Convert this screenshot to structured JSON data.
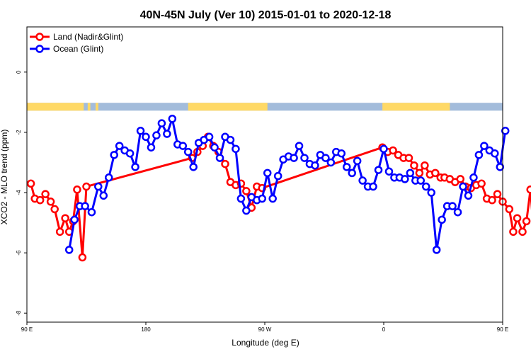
{
  "chart_data": {
    "type": "line",
    "title": "40N-45N July (Ver 10)   2015-01-01 to 2020-12-18",
    "xlabel": "Longitude (deg E)",
    "ylabel": "XCO2 - MLO trend (ppm)",
    "xlim": [
      90,
      450
    ],
    "ylim": [
      -8.3,
      1.5
    ],
    "x_ticks": [
      90,
      180,
      270,
      360,
      450,
      540
    ],
    "x_tick_labels": [
      "90 E",
      "180",
      "90 W",
      "0",
      "90 E",
      "180"
    ],
    "y_ticks": [
      0,
      -2,
      -4,
      -6,
      -8
    ],
    "y_tick_labels": [
      "0",
      "-2",
      "-4",
      "-6",
      "-8"
    ],
    "grid": false,
    "legend_position": "top-left",
    "land_ocean_strip": {
      "y_range": [
        -1.28,
        -1.02
      ],
      "land_color": "#FFD966",
      "ocean_color": "#A3BCDB",
      "land_segments": [
        [
          90,
          133
        ],
        [
          136,
          138
        ],
        [
          142,
          144
        ],
        [
          212,
          272
        ],
        [
          359,
          410
        ],
        [
          451,
          498
        ],
        [
          501,
          503
        ]
      ]
    },
    "series": [
      {
        "name": "Land (Nadir&Glint)",
        "color": "#FF0000",
        "x": [
          93,
          96,
          100,
          104,
          108,
          111,
          115,
          119,
          122,
          125,
          128,
          132,
          135,
          215,
          219,
          223,
          227,
          231,
          235,
          240,
          244,
          248,
          252,
          256,
          260,
          264,
          268,
          359,
          363,
          367,
          371,
          375,
          379,
          383,
          387,
          391,
          395,
          399,
          403,
          406,
          410,
          414,
          418,
          422,
          426,
          430,
          434,
          438,
          442,
          446,
          450,
          455,
          458,
          461,
          465,
          468,
          471,
          475,
          478,
          481,
          485
        ],
        "y": [
          -3.7,
          -4.2,
          -4.25,
          -4.05,
          -4.3,
          -4.55,
          -5.3,
          -4.85,
          -5.3,
          -4.95,
          -3.9,
          -6.15,
          -3.8,
          -2.85,
          -2.65,
          -2.45,
          -2.15,
          -2.45,
          -2.65,
          -3.05,
          -3.65,
          -3.75,
          -3.7,
          -3.95,
          -4.5,
          -3.8,
          -3.85,
          -2.5,
          -2.65,
          -2.6,
          -2.75,
          -2.85,
          -2.85,
          -3.1,
          -3.35,
          -3.1,
          -3.4,
          -3.35,
          -3.5,
          -3.5,
          -3.55,
          -3.65,
          -3.55,
          -3.8,
          -3.85,
          -3.75,
          -3.7,
          -4.2,
          -4.25,
          -4.05,
          -4.3,
          -4.55,
          -5.3,
          -4.85,
          -5.3,
          -4.95,
          -3.9,
          -6.15,
          -3.8,
          -2.85,
          -2.65
        ]
      },
      {
        "name": "Ocean (Glint)",
        "color": "#0000FF",
        "x": [
          122,
          126,
          130,
          134,
          139,
          144,
          148,
          152,
          156,
          160,
          164,
          168,
          172,
          176,
          180,
          184,
          188,
          192,
          196,
          200,
          204,
          208,
          212,
          216,
          220,
          224,
          228,
          232,
          236,
          240,
          244,
          248,
          252,
          256,
          260,
          264,
          268,
          272,
          276,
          280,
          284,
          288,
          292,
          296,
          300,
          304,
          308,
          312,
          316,
          320,
          324,
          328,
          332,
          336,
          340,
          344,
          348,
          352,
          356,
          360,
          364,
          368,
          372,
          376,
          380,
          384,
          388,
          392,
          396,
          400,
          404,
          408,
          412,
          416,
          420,
          424,
          428,
          432,
          436,
          440,
          444,
          448,
          452
        ],
        "y": [
          -5.9,
          -4.9,
          -4.45,
          -4.45,
          -4.65,
          -3.8,
          -4.1,
          -3.5,
          -2.75,
          -2.45,
          -2.6,
          -2.7,
          -3.15,
          -1.95,
          -2.15,
          -2.5,
          -2.1,
          -1.7,
          -2.05,
          -1.55,
          -2.4,
          -2.45,
          -2.65,
          -3.15,
          -2.35,
          -2.25,
          -2.15,
          -2.5,
          -2.85,
          -2.15,
          -2.25,
          -2.55,
          -4.2,
          -4.6,
          -4.15,
          -4.25,
          -4.2,
          -3.35,
          -4.2,
          -3.45,
          -2.9,
          -2.8,
          -2.85,
          -2.45,
          -2.85,
          -3.05,
          -3.1,
          -2.75,
          -2.85,
          -3.0,
          -2.65,
          -2.7,
          -3.15,
          -3.35,
          -2.95,
          -3.6,
          -3.8,
          -3.8,
          -3.25,
          -2.55,
          -3.3,
          -3.5,
          -3.5,
          -3.55,
          -3.35,
          -3.6,
          -3.6,
          -3.8,
          -4.0,
          -5.9,
          -4.9,
          -4.45,
          -4.45,
          -4.65,
          -3.8,
          -4.1,
          -3.5,
          -2.75,
          -2.45,
          -2.6,
          -2.7,
          -3.15,
          -1.95
        ]
      }
    ]
  }
}
